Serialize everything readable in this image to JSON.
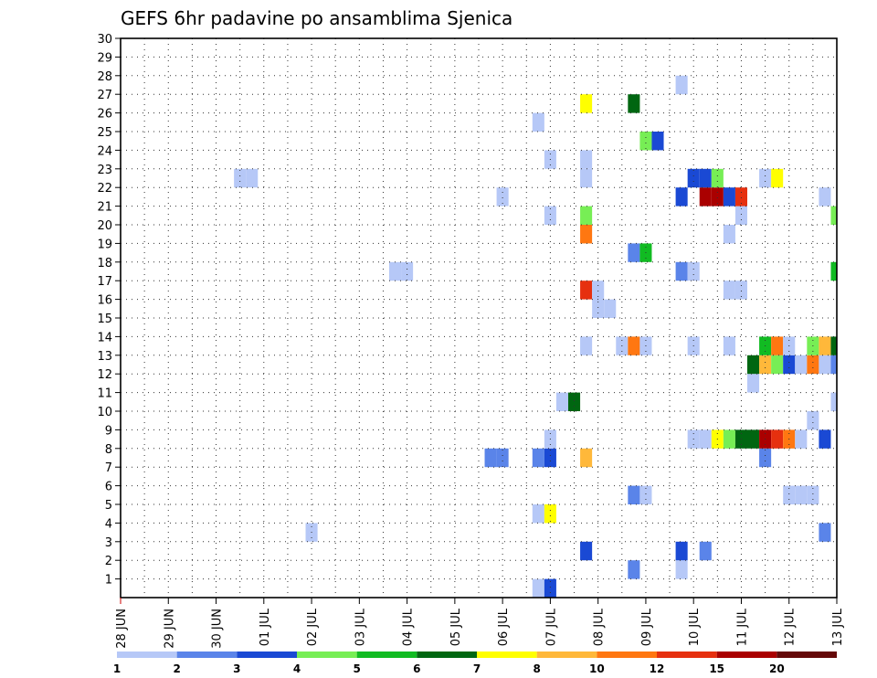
{
  "chart_data": {
    "type": "heatmap",
    "title": "GEFS 6hr padavine po ansamblima Sjenica",
    "xlabel": "",
    "ylabel": "",
    "x_ticks": [
      "28 JUN",
      "29 JUN",
      "30 JUN",
      "01 JUL",
      "02 JUL",
      "03 JUL",
      "04 JUL",
      "05 JUL",
      "06 JUL",
      "07 JUL",
      "08 JUL",
      "09 JUL",
      "10 JUL",
      "11 JUL",
      "12 JUL",
      "13 JUL"
    ],
    "y_ticks": [
      "1",
      "2",
      "3",
      "4",
      "5",
      "6",
      "7",
      "8",
      "9",
      "10",
      "11",
      "12",
      "13",
      "14",
      "15",
      "16",
      "17",
      "18",
      "19",
      "20",
      "21",
      "22",
      "23",
      "24",
      "25",
      "26",
      "27",
      "28",
      "29",
      "30"
    ],
    "xlim_days": [
      0,
      15
    ],
    "ylim": [
      0,
      30
    ],
    "grid": true,
    "colorbar": {
      "labels": [
        "1",
        "2",
        "3",
        "4",
        "5",
        "6",
        "7",
        "8",
        "10",
        "12",
        "15",
        "20"
      ],
      "colors": [
        "#b6c8f7",
        "#5a84e9",
        "#1a49d4",
        "#77ee55",
        "#11bb22",
        "#006611",
        "#ffff00",
        "#ffb83a",
        "#ff7711",
        "#e6300f",
        "#aa0000",
        "#640808"
      ]
    },
    "cells": [
      {
        "t": 8.75,
        "m": 0,
        "c": 1
      },
      {
        "t": 9.0,
        "m": 0,
        "c": 3
      },
      {
        "t": 10.75,
        "m": 1,
        "c": 2
      },
      {
        "t": 11.75,
        "m": 1,
        "c": 1
      },
      {
        "t": 9.75,
        "m": 2,
        "c": 3
      },
      {
        "t": 11.75,
        "m": 2,
        "c": 3
      },
      {
        "t": 12.25,
        "m": 2,
        "c": 2
      },
      {
        "t": 4.0,
        "m": 3,
        "c": 1
      },
      {
        "t": 14.75,
        "m": 3,
        "c": 2
      },
      {
        "t": 8.75,
        "m": 4,
        "c": 1
      },
      {
        "t": 9.0,
        "m": 4,
        "c": 7
      },
      {
        "t": 10.75,
        "m": 5,
        "c": 2
      },
      {
        "t": 11.0,
        "m": 5,
        "c": 1
      },
      {
        "t": 14.0,
        "m": 5,
        "c": 1
      },
      {
        "t": 14.25,
        "m": 5,
        "c": 1
      },
      {
        "t": 14.5,
        "m": 5,
        "c": 1
      },
      {
        "t": 7.75,
        "m": 7,
        "c": 2
      },
      {
        "t": 8.0,
        "m": 7,
        "c": 2
      },
      {
        "t": 8.75,
        "m": 7,
        "c": 2
      },
      {
        "t": 9.0,
        "m": 7,
        "c": 3
      },
      {
        "t": 9.75,
        "m": 7,
        "c": 8
      },
      {
        "t": 13.5,
        "m": 7,
        "c": 2
      },
      {
        "t": 9.0,
        "m": 8,
        "c": 1
      },
      {
        "t": 12.0,
        "m": 8,
        "c": 1
      },
      {
        "t": 12.25,
        "m": 8,
        "c": 1
      },
      {
        "t": 12.5,
        "m": 8,
        "c": 7
      },
      {
        "t": 12.75,
        "m": 8,
        "c": 4
      },
      {
        "t": 13.0,
        "m": 8,
        "c": 6
      },
      {
        "t": 13.25,
        "m": 8,
        "c": 6
      },
      {
        "t": 13.5,
        "m": 8,
        "c": 11
      },
      {
        "t": 13.75,
        "m": 8,
        "c": 10
      },
      {
        "t": 14.0,
        "m": 8,
        "c": 9
      },
      {
        "t": 14.25,
        "m": 8,
        "c": 1
      },
      {
        "t": 14.75,
        "m": 8,
        "c": 3
      },
      {
        "t": 14.5,
        "m": 9,
        "c": 1
      },
      {
        "t": 9.25,
        "m": 10,
        "c": 1
      },
      {
        "t": 9.5,
        "m": 10,
        "c": 6
      },
      {
        "t": 15.0,
        "m": 10,
        "c": 1
      },
      {
        "t": 13.25,
        "m": 11,
        "c": 1
      },
      {
        "t": 13.25,
        "m": 12,
        "c": 6
      },
      {
        "t": 13.5,
        "m": 12,
        "c": 8
      },
      {
        "t": 13.75,
        "m": 12,
        "c": 4
      },
      {
        "t": 14.0,
        "m": 12,
        "c": 3
      },
      {
        "t": 14.25,
        "m": 12,
        "c": 1
      },
      {
        "t": 14.5,
        "m": 12,
        "c": 9
      },
      {
        "t": 14.75,
        "m": 12,
        "c": 1
      },
      {
        "t": 15.0,
        "m": 12,
        "c": 2
      },
      {
        "t": 9.75,
        "m": 13,
        "c": 1
      },
      {
        "t": 10.5,
        "m": 13,
        "c": 1
      },
      {
        "t": 10.75,
        "m": 13,
        "c": 9
      },
      {
        "t": 11.0,
        "m": 13,
        "c": 1
      },
      {
        "t": 12.0,
        "m": 13,
        "c": 1
      },
      {
        "t": 12.75,
        "m": 13,
        "c": 1
      },
      {
        "t": 13.5,
        "m": 13,
        "c": 5
      },
      {
        "t": 13.75,
        "m": 13,
        "c": 9
      },
      {
        "t": 14.0,
        "m": 13,
        "c": 1
      },
      {
        "t": 14.5,
        "m": 13,
        "c": 4
      },
      {
        "t": 14.75,
        "m": 13,
        "c": 8
      },
      {
        "t": 15.0,
        "m": 13,
        "c": 6
      },
      {
        "t": 10.0,
        "m": 15,
        "c": 1
      },
      {
        "t": 10.25,
        "m": 15,
        "c": 1
      },
      {
        "t": 9.75,
        "m": 16,
        "c": 10
      },
      {
        "t": 10.0,
        "m": 16,
        "c": 1
      },
      {
        "t": 12.75,
        "m": 16,
        "c": 1
      },
      {
        "t": 13.0,
        "m": 16,
        "c": 1
      },
      {
        "t": 5.75,
        "m": 17,
        "c": 1
      },
      {
        "t": 6.0,
        "m": 17,
        "c": 1
      },
      {
        "t": 11.75,
        "m": 17,
        "c": 2
      },
      {
        "t": 12.0,
        "m": 17,
        "c": 1
      },
      {
        "t": 15.0,
        "m": 17,
        "c": 5
      },
      {
        "t": 10.75,
        "m": 18,
        "c": 2
      },
      {
        "t": 11.0,
        "m": 18,
        "c": 5
      },
      {
        "t": 9.75,
        "m": 19,
        "c": 9
      },
      {
        "t": 12.75,
        "m": 19,
        "c": 1
      },
      {
        "t": 9.0,
        "m": 20,
        "c": 1
      },
      {
        "t": 9.75,
        "m": 20,
        "c": 4
      },
      {
        "t": 13.0,
        "m": 20,
        "c": 1
      },
      {
        "t": 15.0,
        "m": 20,
        "c": 4
      },
      {
        "t": 8.0,
        "m": 21,
        "c": 1
      },
      {
        "t": 11.75,
        "m": 21,
        "c": 3
      },
      {
        "t": 12.25,
        "m": 21,
        "c": 11
      },
      {
        "t": 12.5,
        "m": 21,
        "c": 11
      },
      {
        "t": 12.75,
        "m": 21,
        "c": 3
      },
      {
        "t": 13.0,
        "m": 21,
        "c": 10
      },
      {
        "t": 14.75,
        "m": 21,
        "c": 1
      },
      {
        "t": 2.5,
        "m": 22,
        "c": 1
      },
      {
        "t": 2.75,
        "m": 22,
        "c": 1
      },
      {
        "t": 9.75,
        "m": 22,
        "c": 1
      },
      {
        "t": 12.0,
        "m": 22,
        "c": 3
      },
      {
        "t": 12.25,
        "m": 22,
        "c": 3
      },
      {
        "t": 12.5,
        "m": 22,
        "c": 4
      },
      {
        "t": 13.5,
        "m": 22,
        "c": 1
      },
      {
        "t": 13.75,
        "m": 22,
        "c": 7
      },
      {
        "t": 9.0,
        "m": 23,
        "c": 1
      },
      {
        "t": 9.75,
        "m": 23,
        "c": 1
      },
      {
        "t": 11.0,
        "m": 24,
        "c": 4
      },
      {
        "t": 11.25,
        "m": 24,
        "c": 3
      },
      {
        "t": 8.75,
        "m": 25,
        "c": 1
      },
      {
        "t": 9.75,
        "m": 26,
        "c": 7
      },
      {
        "t": 10.75,
        "m": 26,
        "c": 6
      },
      {
        "t": 11.75,
        "m": 27,
        "c": 1
      }
    ]
  }
}
